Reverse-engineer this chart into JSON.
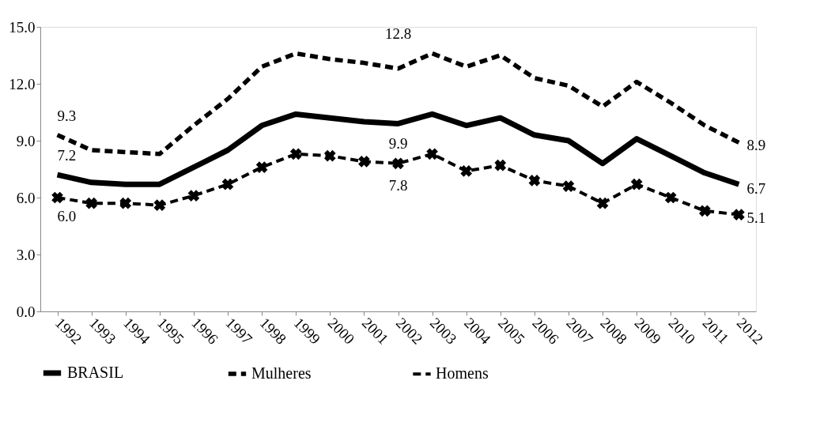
{
  "chart_data": {
    "type": "line",
    "categories": [
      "1992",
      "1993",
      "1994",
      "1995",
      "1996",
      "1997",
      "1998",
      "1999",
      "2000",
      "2001",
      "2002",
      "2003",
      "2004",
      "2005",
      "2006",
      "2007",
      "2008",
      "2009",
      "2010",
      "2011",
      "2012"
    ],
    "ylim": [
      0,
      15
    ],
    "yticks": [
      {
        "value": 0,
        "label": "0.0"
      },
      {
        "value": 3,
        "label": "3.0"
      },
      {
        "value": 6,
        "label": "6.0"
      },
      {
        "value": 9,
        "label": "9.0"
      },
      {
        "value": 12,
        "label": "12.0"
      },
      {
        "value": 15,
        "label": "15.0"
      }
    ],
    "grid": false,
    "legend": "bottom",
    "series": [
      {
        "name": "BRASIL",
        "color": "#000000",
        "line_style": "solid",
        "marker": "none",
        "values": [
          7.2,
          6.8,
          6.7,
          6.7,
          7.6,
          8.5,
          9.8,
          10.4,
          10.2,
          10.0,
          9.9,
          10.4,
          9.8,
          10.2,
          9.3,
          9.0,
          7.8,
          9.1,
          8.2,
          7.3,
          6.7
        ],
        "value_labels": [
          "7.2",
          null,
          null,
          null,
          null,
          null,
          null,
          null,
          null,
          null,
          "9.9",
          null,
          null,
          null,
          null,
          null,
          null,
          null,
          null,
          null,
          "6.7"
        ]
      },
      {
        "name": "Mulheres",
        "color": "#000000",
        "line_style": "dashed",
        "marker": "none",
        "values": [
          9.3,
          8.5,
          8.4,
          8.3,
          9.8,
          11.2,
          12.9,
          13.6,
          13.3,
          13.1,
          12.8,
          13.6,
          12.9,
          13.5,
          12.3,
          11.9,
          10.8,
          12.1,
          11.0,
          9.8,
          8.9
        ],
        "value_labels": [
          "9.3",
          null,
          null,
          null,
          null,
          null,
          null,
          null,
          null,
          null,
          "12.8",
          null,
          null,
          null,
          null,
          null,
          null,
          null,
          null,
          null,
          "8.9"
        ]
      },
      {
        "name": "Homens",
        "color": "#000000",
        "line_style": "dashed",
        "marker": "cross",
        "values": [
          6.0,
          5.7,
          5.7,
          5.6,
          6.1,
          6.7,
          7.6,
          8.3,
          8.2,
          7.9,
          7.8,
          8.3,
          7.4,
          7.7,
          6.9,
          6.6,
          5.7,
          6.7,
          6.0,
          5.3,
          5.1
        ],
        "value_labels": [
          "6.0",
          null,
          null,
          null,
          null,
          null,
          null,
          null,
          null,
          null,
          "7.8",
          null,
          null,
          null,
          null,
          null,
          null,
          null,
          null,
          null,
          "5.1"
        ]
      }
    ]
  }
}
